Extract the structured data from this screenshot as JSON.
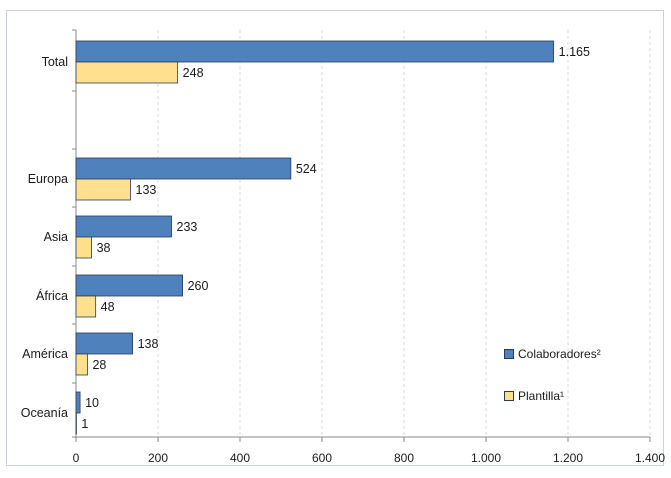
{
  "chart_data": {
    "type": "bar",
    "orientation": "horizontal",
    "title": "",
    "xlabel": "",
    "ylabel": "",
    "categories": [
      "Total",
      "Europa",
      "Asia",
      "África",
      "América",
      "Oceanía"
    ],
    "series": [
      {
        "name": "Colaboradores²",
        "values": [
          1165,
          524,
          233,
          260,
          138,
          10
        ],
        "labels": [
          "1.165",
          "524",
          "233",
          "260",
          "138",
          "10"
        ],
        "color": "#4f81bd"
      },
      {
        "name": "Plantilla¹",
        "values": [
          248,
          133,
          38,
          48,
          28,
          1
        ],
        "labels": [
          "248",
          "133",
          "38",
          "48",
          "28",
          "1"
        ],
        "color": "#ffe08f"
      }
    ],
    "xlim": [
      0,
      1400
    ],
    "xticks": [
      0,
      200,
      400,
      600,
      800,
      1000,
      1200,
      1400
    ],
    "xtick_labels": [
      "0",
      "200",
      "400",
      "600",
      "800",
      "1.000",
      "1.200",
      "1.400"
    ],
    "grid": true,
    "legend_position": "bottom-right"
  },
  "colors": {
    "bar_border": "#2a3b57",
    "grid": "#d9d9d9",
    "axis": "#8a8a8a"
  }
}
